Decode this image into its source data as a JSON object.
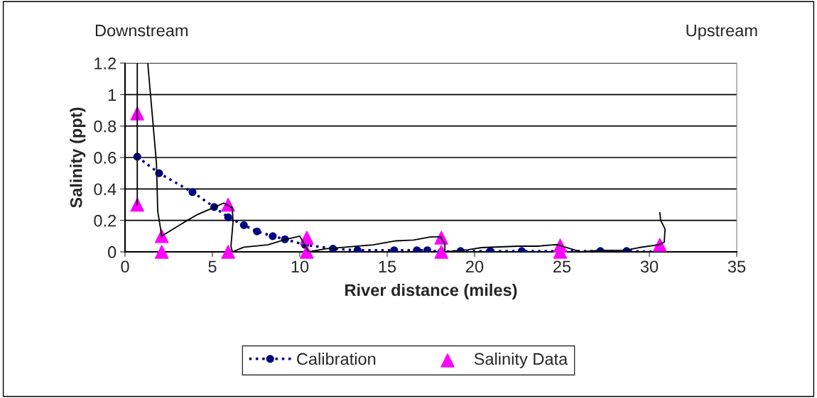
{
  "chart_data": {
    "type": "line",
    "xlabel": "River distance (miles)",
    "ylabel": "Salinity (ppt)",
    "annotations": [
      "Downstream",
      "Upstream"
    ],
    "xlim": [
      0,
      35
    ],
    "xticks": [
      0,
      5,
      10,
      15,
      20,
      25,
      30,
      35
    ],
    "ylim": [
      0,
      1.2
    ],
    "yticks": [
      0,
      {
        "value": 0.2,
        "label": "0.2"
      },
      {
        "value": 0.4,
        "label": "0.4"
      },
      {
        "value": 0.6,
        "label": "0.6"
      },
      {
        "value": 0.8,
        "label": "0.8"
      },
      1,
      {
        "value": 1.2,
        "label": "1.2"
      }
    ],
    "grid": "y",
    "legend": "bottom",
    "series": [
      {
        "name": "Calibration",
        "color": "#000080",
        "marker": "circle",
        "line_style": "dotted",
        "x": [
          0.7,
          1.95,
          3.86,
          5.1,
          5.9,
          6.8,
          7.55,
          8.45,
          9.15,
          10.3,
          11.9,
          13.3,
          15.4,
          16.7,
          17.3,
          18.1,
          19.2,
          20.9,
          22.7,
          27.2,
          28.7,
          30.5
        ],
        "values": [
          0.605,
          0.5,
          0.38,
          0.285,
          0.22,
          0.17,
          0.13,
          0.1,
          0.08,
          0.045,
          0.02,
          0.01,
          0.01,
          0.01,
          0.01,
          0,
          0.005,
          0.005,
          0.005,
          0.005,
          0.005,
          0
        ]
      },
      {
        "name": "Salinity Data",
        "type": "scatter",
        "color": "#ff00ff",
        "marker": "triangle",
        "x": [
          0.7,
          0.7,
          2.1,
          2.1,
          5.9,
          5.9,
          10.4,
          10.4,
          18.1,
          18.1,
          24.9,
          24.9,
          30.6
        ],
        "values": [
          0.88,
          0.3,
          0.1,
          0,
          0.3,
          0,
          0.09,
          0,
          0.09,
          0,
          0.04,
          0,
          0.045
        ]
      },
      {
        "type": "line",
        "color": "#000000",
        "marker": "none",
        "line_style": "solid",
        "x": [
          1.3,
          1.45,
          1.8,
          1.87,
          2.1,
          3.41,
          4.1,
          5.04,
          5.65,
          6.14,
          6.18,
          6.06,
          6.14,
          6.8,
          8.17,
          9.2,
          10.0,
          10.5,
          11.5,
          14.2,
          15.5,
          16.5,
          17.5,
          18.05,
          18.3,
          18.3,
          19.6,
          20.4,
          22.5,
          23.6,
          24.5,
          24.75,
          26.1,
          27.15,
          28.6,
          29.4,
          30.5,
          30.85,
          30.9,
          30.65,
          30.6
        ],
        "values": [
          1.2,
          1.01,
          0.56,
          0.26,
          0.1,
          0.19,
          0.235,
          0.28,
          0.31,
          0.28,
          0.19,
          0.035,
          0,
          0.03,
          0.045,
          0.08,
          0.1,
          0,
          0.02,
          0.045,
          0.07,
          0.075,
          0.095,
          0.095,
          0.05,
          0,
          0.013,
          0.027,
          0.036,
          0.036,
          0.045,
          0.045,
          0,
          0.01,
          0.01,
          0.027,
          0.045,
          0.06,
          0.145,
          0.2,
          0.25
        ]
      },
      {
        "type": "line",
        "color": "#000000",
        "marker": "none",
        "line_style": "solid",
        "x": [
          0.7,
          0.7
        ],
        "values": [
          0.3,
          1.2
        ]
      }
    ]
  }
}
